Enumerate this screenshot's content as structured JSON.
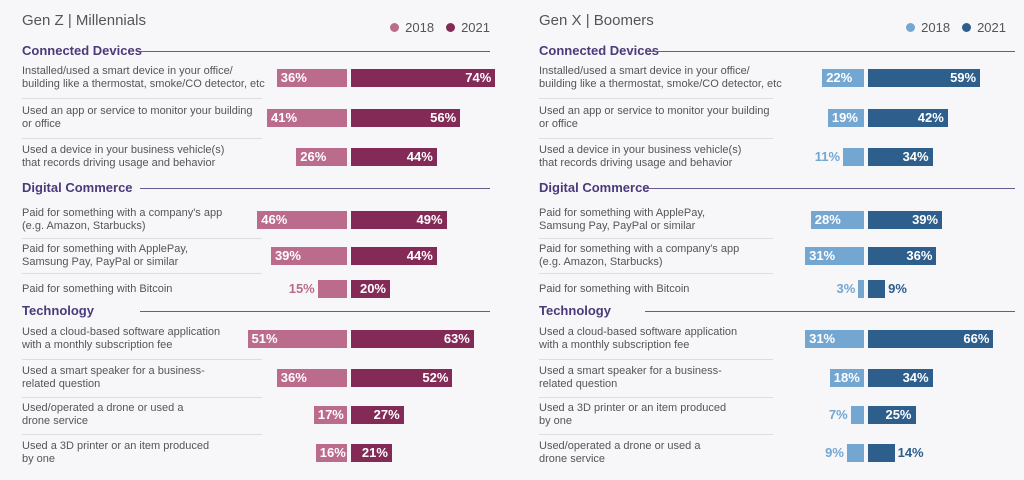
{
  "colors": {
    "left_2018": "#bb6c8c",
    "left_2021": "#842a56",
    "right_2018": "#74a6d2",
    "right_2021": "#2d5e8c",
    "section": "#4a3a7a"
  },
  "panels": [
    {
      "title": "Gen Z  |  Millennials",
      "legend": [
        "2018",
        "2021"
      ],
      "sections": [
        {
          "name": "Connected Devices",
          "rows": [
            {
              "label": "Installed/used a smart device in your office/\nbuilding like a thermostat, smoke/CO detector, etc",
              "v2018": 36,
              "v2021": 74,
              "t2018": "36%",
              "t2021": "74%"
            },
            {
              "label": "Used an app or service to monitor your building\nor office",
              "v2018": 41,
              "v2021": 56,
              "t2018": "41%",
              "t2021": "56%"
            },
            {
              "label": "Used a device in your business vehicle(s)\nthat records driving usage and behavior",
              "v2018": 26,
              "v2021": 44,
              "t2018": "26%",
              "t2021": "44%"
            }
          ]
        },
        {
          "name": "Digital Commerce",
          "rows": [
            {
              "label": "Paid for something with a company's app\n(e.g. Amazon, Starbucks)",
              "v2018": 46,
              "v2021": 49,
              "t2018": "46%",
              "t2021": "49%"
            },
            {
              "label": "Paid for something with ApplePay,\nSamsung Pay, PayPal or similar",
              "v2018": 39,
              "v2021": 44,
              "t2018": "39%",
              "t2021": "44%"
            },
            {
              "label": "Paid for something with Bitcoin",
              "v2018": 15,
              "v2021": 20,
              "t2018": "15%",
              "t2021": "20%"
            }
          ]
        },
        {
          "name": "Technology",
          "rows": [
            {
              "label": "Used a cloud-based software application\nwith a monthly subscription fee",
              "v2018": 51,
              "v2021": 63,
              "t2018": "51%",
              "t2021": "63%"
            },
            {
              "label": "Used a smart speaker for a business-\nrelated question",
              "v2018": 36,
              "v2021": 52,
              "t2018": "36%",
              "t2021": "52%"
            },
            {
              "label": "Used/operated a drone or used a\ndrone service",
              "v2018": 17,
              "v2021": 27,
              "t2018": "17%",
              "t2021": "27%"
            },
            {
              "label": "Used a 3D printer or an item produced\nby one",
              "v2018": 16,
              "v2021": 21,
              "t2018": "16%",
              "t2021": "21%"
            }
          ]
        }
      ]
    },
    {
      "title": "Gen X  |  Boomers",
      "legend": [
        "2018",
        "2021"
      ],
      "sections": [
        {
          "name": "Connected Devices",
          "rows": [
            {
              "label": "Installed/used a smart device in your office/\nbuilding like a thermostat, smoke/CO detector, etc",
              "v2018": 22,
              "v2021": 59,
              "t2018": "22%",
              "t2021": "59%"
            },
            {
              "label": "Used an app or service to monitor your building\nor office",
              "v2018": 19,
              "v2021": 42,
              "t2018": "19%",
              "t2021": "42%"
            },
            {
              "label": "Used a device in your business vehicle(s)\nthat records driving usage and behavior",
              "v2018": 11,
              "v2021": 34,
              "t2018": "11%",
              "t2021": "34%"
            }
          ]
        },
        {
          "name": "Digital Commerce",
          "rows": [
            {
              "label": "Paid for something with ApplePay,\nSamsung Pay, PayPal or similar",
              "v2018": 28,
              "v2021": 39,
              "t2018": "28%",
              "t2021": "39%"
            },
            {
              "label": "Paid for something with a company's app\n(e.g. Amazon, Starbucks)",
              "v2018": 31,
              "v2021": 36,
              "t2018": "31%",
              "t2021": "36%"
            },
            {
              "label": "Paid for something with Bitcoin",
              "v2018": 3,
              "v2021": 9,
              "t2018": "3%",
              "t2021": "9%"
            }
          ]
        },
        {
          "name": "Technology",
          "rows": [
            {
              "label": "Used a cloud-based software application\nwith a monthly subscription fee",
              "v2018": 31,
              "v2021": 66,
              "t2018": "31%",
              "t2021": "66%"
            },
            {
              "label": "Used a smart speaker for a business-\nrelated question",
              "v2018": 18,
              "v2021": 34,
              "t2018": "18%",
              "t2021": "34%"
            },
            {
              "label": "Used a 3D printer or an item produced\nby one",
              "v2018": 7,
              "v2021": 25,
              "t2018": "7%",
              "t2021": "25%"
            },
            {
              "label": "Used/operated a drone or used a\ndrone service",
              "v2018": 9,
              "v2021": 14,
              "t2018": "9%",
              "t2021": "14%"
            }
          ]
        }
      ]
    }
  ],
  "chart_data": [
    {
      "type": "bar",
      "title": "Gen Z  |  Millennials",
      "categories": [
        "Installed/used a smart device in your office/building like a thermostat, smoke/CO detector, etc",
        "Used an app or service to monitor your building or office",
        "Used a device in your business vehicle(s) that records driving usage and behavior",
        "Paid for something with a company's app (e.g. Amazon, Starbucks)",
        "Paid for something with ApplePay, Samsung Pay, PayPal or similar",
        "Paid for something with Bitcoin",
        "Used a cloud-based software application with a monthly subscription fee",
        "Used a smart speaker for a business-related question",
        "Used/operated a drone or used a drone service",
        "Used a 3D printer or an item produced by one"
      ],
      "series": [
        {
          "name": "2018",
          "values": [
            36,
            41,
            26,
            46,
            39,
            15,
            51,
            36,
            17,
            16
          ]
        },
        {
          "name": "2021",
          "values": [
            74,
            56,
            44,
            49,
            44,
            20,
            63,
            52,
            27,
            21
          ]
        }
      ],
      "legend": "top-right"
    },
    {
      "type": "bar",
      "title": "Gen X  |  Boomers",
      "categories": [
        "Installed/used a smart device in your office/building like a thermostat, smoke/CO detector, etc",
        "Used an app or service to monitor your building or office",
        "Used a device in your business vehicle(s) that records driving usage and behavior",
        "Paid for something with ApplePay, Samsung Pay, PayPal or similar",
        "Paid for something with a company's app (e.g. Amazon, Starbucks)",
        "Paid for something with Bitcoin",
        "Used a cloud-based software application with a monthly subscription fee",
        "Used a smart speaker for a business-related question",
        "Used a 3D printer or an item produced by one",
        "Used/operated a drone or used a drone service"
      ],
      "series": [
        {
          "name": "2018",
          "values": [
            22,
            19,
            11,
            28,
            31,
            3,
            31,
            18,
            7,
            9
          ]
        },
        {
          "name": "2021",
          "values": [
            59,
            42,
            34,
            39,
            36,
            9,
            66,
            34,
            25,
            14
          ]
        }
      ],
      "legend": "top-right"
    }
  ]
}
